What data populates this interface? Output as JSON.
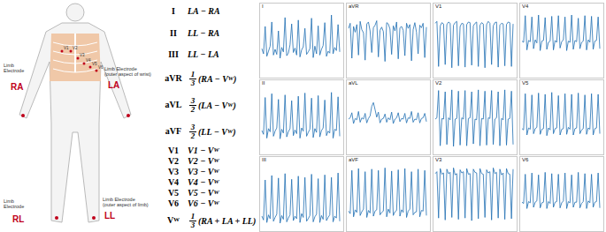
{
  "body": {
    "limb_electrodes": [
      {
        "id": "RA",
        "note": [
          "Limb",
          "Electrode"
        ]
      },
      {
        "id": "LA",
        "note": [
          "Limb Electrode",
          "(outer aspect of wrist)"
        ]
      },
      {
        "id": "RL",
        "note": [
          "Limb",
          "Electrode"
        ]
      },
      {
        "id": "LL",
        "note": [
          "Limb Electrode",
          "(outer aspect of limb)"
        ]
      }
    ],
    "chest_electrodes": [
      "V1",
      "V2",
      "V3",
      "V4",
      "V5",
      "V6"
    ]
  },
  "leads": [
    {
      "lead": [
        {
          "t": "I"
        }
      ],
      "expr": [
        {
          "t": "LA − RA"
        }
      ]
    },
    {
      "lead": [
        {
          "t": "II"
        }
      ],
      "expr": [
        {
          "t": "LL − RA"
        }
      ]
    },
    {
      "lead": [
        {
          "t": "III"
        }
      ],
      "expr": [
        {
          "t": "LL − LA"
        }
      ]
    },
    {
      "lead": [
        {
          "t": "aVR"
        }
      ],
      "expr": [
        {
          "frac": [
            "1",
            "3"
          ]
        },
        {
          "t": "(RA − V"
        },
        {
          "sub": "W"
        },
        {
          "t": ")"
        }
      ]
    },
    {
      "lead": [
        {
          "t": "aVL"
        }
      ],
      "expr": [
        {
          "frac": [
            "3",
            "2"
          ]
        },
        {
          "t": "(LA − V"
        },
        {
          "sub": "W"
        },
        {
          "t": ")"
        }
      ]
    },
    {
      "lead": [
        {
          "t": "aVF"
        }
      ],
      "expr": [
        {
          "frac": [
            "3",
            "2"
          ]
        },
        {
          "t": "(LL − V"
        },
        {
          "sub": "W"
        },
        {
          "t": ")"
        }
      ]
    },
    {
      "lead": [
        {
          "t": "V1"
        }
      ],
      "expr": [
        {
          "t": "V1 − V"
        },
        {
          "sub": "W"
        }
      ]
    },
    {
      "lead": [
        {
          "t": "V2"
        }
      ],
      "expr": [
        {
          "t": "V2 − V"
        },
        {
          "sub": "W"
        }
      ]
    },
    {
      "lead": [
        {
          "t": "V3"
        }
      ],
      "expr": [
        {
          "t": "V3 − V"
        },
        {
          "sub": "W"
        }
      ]
    },
    {
      "lead": [
        {
          "t": "V4"
        }
      ],
      "expr": [
        {
          "t": "V4 − V"
        },
        {
          "sub": "W"
        }
      ]
    },
    {
      "lead": [
        {
          "t": "V5"
        }
      ],
      "expr": [
        {
          "t": "V5 − V"
        },
        {
          "sub": "W"
        }
      ]
    },
    {
      "lead": [
        {
          "t": "V6"
        }
      ],
      "expr": [
        {
          "t": "V6 − V"
        },
        {
          "sub": "W"
        }
      ]
    },
    {
      "lead": [
        {
          "t": "V"
        },
        {
          "sub": "W"
        }
      ],
      "expr": [
        {
          "frac": [
            "1",
            "3"
          ]
        },
        {
          "t": "(RA + LA + LL)"
        }
      ]
    }
  ],
  "chart_data": [
    {
      "type": "line",
      "title": "I",
      "color": "#1f6fb2",
      "tick_labels": false,
      "ylim": [
        0,
        10
      ],
      "values": [
        4,
        3.2,
        7.5,
        2.8,
        3.6,
        4.4,
        8.2,
        3,
        3.9,
        3.1,
        6.8,
        2.5,
        4.2,
        3.5,
        8.9,
        2.9,
        3.3,
        4.6,
        7.9,
        3.4,
        4.1,
        3,
        8.5,
        2.7,
        3.8,
        4.3,
        7.2,
        3.1,
        3.5,
        4,
        8.8,
        2.6,
        4.4,
        3.2,
        7.6,
        3,
        3.9,
        4.5,
        8.1,
        2.8,
        3.6,
        3.3,
        9.3,
        3.2,
        4.2,
        3.7,
        7.8,
        3.5
      ]
    },
    {
      "type": "line",
      "title": "aVR",
      "color": "#1f6fb2",
      "tick_labels": false,
      "ylim": [
        0,
        10
      ],
      "values": [
        7.2,
        8,
        2.5,
        7.5,
        6.6,
        7.8,
        3,
        8.3,
        7,
        6.5,
        2.2,
        7.9,
        8.2,
        6.8,
        3.4,
        7.3,
        7.7,
        8.4,
        2.7,
        6.9,
        7.4,
        6.7,
        2,
        8.1,
        7.9,
        7.1,
        3.1,
        7.6,
        6.8,
        8.2,
        2.4,
        7.3,
        7.5,
        6.9,
        2.9,
        8,
        7.2,
        7.8,
        2.1,
        7,
        8.1,
        6.6,
        3.2,
        7.7,
        7.3,
        8,
        2.6,
        7.4
      ]
    },
    {
      "type": "line",
      "title": "V1",
      "color": "#1f6fb2",
      "tick_labels": false,
      "ylim": [
        0,
        10
      ],
      "values": [
        8,
        8.3,
        1.2,
        7.6,
        8.1,
        7.9,
        1.5,
        7.8,
        8.2,
        8,
        1,
        7.7,
        8.1,
        8.3,
        1.3,
        7.5,
        8,
        7.9,
        1.1,
        7.8,
        8.2,
        8.1,
        1.4,
        7.6,
        8,
        8.2,
        1.2,
        7.7,
        8.1,
        7.9,
        1,
        7.8,
        8.3,
        8,
        1.5,
        7.6,
        8.1,
        8.2,
        1.1,
        7.7,
        8,
        7.9,
        1.3,
        7.8,
        8.2,
        8.1,
        1.2,
        7.9
      ]
    },
    {
      "type": "line",
      "title": "V4",
      "color": "#1f6fb2",
      "tick_labels": false,
      "ylim": [
        0,
        10
      ],
      "values": [
        5.2,
        5,
        9.2,
        3.8,
        5.3,
        5.1,
        9,
        4,
        5.4,
        4.9,
        9.3,
        3.7,
        5.2,
        5.3,
        8.9,
        3.9,
        5,
        5.2,
        9.1,
        3.8,
        5.3,
        5,
        9.2,
        4.1,
        5.1,
        5.4,
        9,
        3.7,
        5.2,
        5,
        9.3,
        3.9,
        5.3,
        5.1,
        8.8,
        4,
        5,
        5.2,
        9.2,
        3.8,
        5.4,
        5,
        9.1,
        3.9,
        5.2,
        5.3,
        9,
        4
      ]
    },
    {
      "type": "line",
      "title": "II",
      "color": "#1f6fb2",
      "tick_labels": false,
      "ylim": [
        0,
        10
      ],
      "values": [
        3.2,
        2.6,
        8.4,
        2,
        3.5,
        3,
        9,
        2.3,
        3.1,
        3.6,
        8.1,
        1.9,
        3.4,
        2.8,
        8.8,
        2.2,
        3,
        3.5,
        7.9,
        2.4,
        3.3,
        2.7,
        8.6,
        2,
        3.6,
        3.1,
        9.1,
        2.3,
        2.9,
        3.4,
        8.3,
        2.1,
        3.5,
        2.9,
        8.7,
        2.2,
        3.2,
        3.6,
        8,
        2.4,
        3.1,
        2.8,
        9.2,
        2,
        3.4,
        3.2,
        8.5,
        2.3
      ]
    },
    {
      "type": "line",
      "title": "aVL",
      "color": "#1f6fb2",
      "tick_labels": false,
      "ylim": [
        0,
        10
      ],
      "values": [
        5,
        5.2,
        6,
        4.3,
        5.1,
        4.9,
        6.2,
        4.5,
        5.2,
        5,
        5.9,
        4.4,
        5.1,
        5.5,
        7,
        7.6,
        6.5,
        5.3,
        6.1,
        4.4,
        5,
        5.1,
        5.8,
        4.5,
        5.2,
        4.9,
        6.1,
        4.3,
        5,
        5.2,
        6,
        4.6,
        5.1,
        5,
        5.9,
        4.4,
        5.2,
        5.1,
        6.2,
        4.5,
        5,
        4.9,
        6,
        4.4,
        5.1,
        5.2,
        5.9,
        4.6
      ]
    },
    {
      "type": "line",
      "title": "V2",
      "color": "#1f6fb2",
      "tick_labels": false,
      "ylim": [
        0,
        10
      ],
      "values": [
        5,
        5.2,
        9.5,
        0.8,
        5.1,
        5,
        9.3,
        1,
        5.2,
        4.9,
        9.6,
        0.7,
        5,
        5.1,
        9.4,
        0.9,
        5.2,
        5,
        9.5,
        0.8,
        5.1,
        5.2,
        9.3,
        1.1,
        5,
        4.9,
        9.6,
        0.8,
        5.1,
        5,
        9.4,
        0.9,
        5.2,
        5.1,
        9.5,
        1,
        5,
        5.2,
        9.3,
        0.8,
        5.1,
        4.9,
        9.6,
        0.9,
        5,
        5.1,
        9.4,
        1
      ]
    },
    {
      "type": "line",
      "title": "V5",
      "color": "#1f6fb2",
      "tick_labels": false,
      "ylim": [
        0,
        10
      ],
      "values": [
        3.5,
        3.3,
        9,
        2.5,
        3.6,
        3.4,
        8.8,
        2.7,
        3.5,
        3.7,
        9.1,
        2.6,
        3.4,
        3.5,
        8.9,
        2.4,
        3.6,
        3.3,
        9.2,
        2.7,
        3.5,
        3.6,
        8.7,
        2.5,
        3.4,
        3.5,
        9,
        2.6,
        3.7,
        3.4,
        8.9,
        2.5,
        3.5,
        3.6,
        9.1,
        2.7,
        3.3,
        3.5,
        8.8,
        2.6,
        3.6,
        3.4,
        9,
        2.5,
        3.5,
        3.6,
        8.9,
        2.7
      ]
    },
    {
      "type": "line",
      "title": "III",
      "color": "#1f6fb2",
      "tick_labels": false,
      "ylim": [
        0,
        10
      ],
      "values": [
        1.8,
        1.2,
        7.5,
        0.8,
        2,
        1.4,
        8.2,
        1,
        1.6,
        2.1,
        7.8,
        0.7,
        1.9,
        1.3,
        8.5,
        0.9,
        1.5,
        2,
        7.6,
        1.1,
        1.8,
        1.4,
        8.1,
        0.8,
        2.2,
        1.6,
        7.9,
        1,
        1.4,
        1.9,
        8.4,
        0.9,
        1.7,
        2.1,
        7.7,
        0.8,
        1.9,
        1.3,
        8.3,
        1.1,
        1.6,
        2,
        7.9,
        0.9,
        1.8,
        1.5,
        8.6,
        1
      ]
    },
    {
      "type": "line",
      "title": "aVF",
      "color": "#1f6fb2",
      "tick_labels": false,
      "ylim": [
        0,
        10
      ],
      "values": [
        2.6,
        2.2,
        9,
        1.7,
        2.8,
        2.4,
        9.3,
        1.9,
        2.5,
        2.9,
        8.8,
        1.6,
        2.7,
        2.3,
        9.2,
        1.8,
        2.6,
        2.8,
        9,
        2,
        2.4,
        2.6,
        9.4,
        1.7,
        2.9,
        2.3,
        8.9,
        1.9,
        2.5,
        2.7,
        9.1,
        1.8,
        2.8,
        2.4,
        9.3,
        1.6,
        2.6,
        2.9,
        8.8,
        2,
        2.4,
        2.5,
        9.2,
        1.7,
        2.7,
        2.6,
        9,
        1.9
      ]
    },
    {
      "type": "line",
      "title": "V3",
      "color": "#1f6fb2",
      "tick_labels": false,
      "ylim": [
        0,
        10
      ],
      "values": [
        8.5,
        8.8,
        1.5,
        9.3,
        8.4,
        8.6,
        1.2,
        9.2,
        8.5,
        8.7,
        1.6,
        9.4,
        8.3,
        8.5,
        1.3,
        9.1,
        8.6,
        8.8,
        1.5,
        9.3,
        8.4,
        8.5,
        1.1,
        9.2,
        8.7,
        8.6,
        1.4,
        9.3,
        8.5,
        8.4,
        1.6,
        9.1,
        8.6,
        8.8,
        1.2,
        9.4,
        8.5,
        8.7,
        1.5,
        9.2,
        8.3,
        8.6,
        1.3,
        9.3,
        8.5,
        8.4,
        1.4,
        9.2
      ]
    },
    {
      "type": "line",
      "title": "V6",
      "color": "#1f6fb2",
      "tick_labels": false,
      "ylim": [
        0,
        10
      ],
      "values": [
        4,
        3.8,
        8.4,
        3,
        4.1,
        3.9,
        8.6,
        3.2,
        4,
        4.2,
        8.3,
        3.1,
        3.9,
        4,
        8.7,
        3,
        4.1,
        3.8,
        8.5,
        3.2,
        4,
        4.1,
        8.4,
        3.1,
        3.9,
        4.2,
        8.6,
        3,
        4.1,
        3.9,
        8.3,
        3.2,
        4,
        4,
        8.7,
        3.1,
        3.8,
        4.1,
        8.5,
        3,
        4.2,
        3.9,
        8.4,
        3.2,
        4,
        4.1,
        8.6,
        3.1
      ]
    }
  ]
}
